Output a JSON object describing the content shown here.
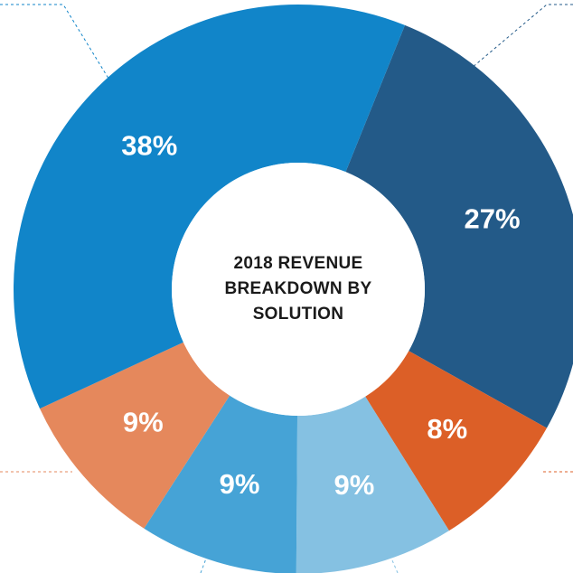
{
  "chart_data": {
    "type": "pie",
    "title": "2018 REVENUE BREAKDOWN BY SOLUTION",
    "values": [
      27,
      8,
      9,
      9,
      9,
      38
    ],
    "value_labels": [
      "27%",
      "8%",
      "9%",
      "9%",
      "9%",
      "38%"
    ],
    "colors": [
      "#235a88",
      "#dc5f27",
      "#85c1e2",
      "#46a3d6",
      "#e5885c",
      "#1185c9"
    ]
  }
}
